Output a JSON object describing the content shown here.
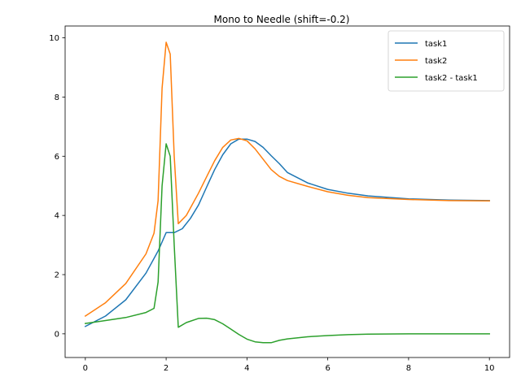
{
  "chart_data": {
    "type": "line",
    "title": "Mono to Needle (shift=-0.2)",
    "xlabel": "",
    "ylabel": "",
    "xlim": [
      -0.5,
      10.5
    ],
    "ylim": [
      -0.8,
      10.4
    ],
    "xticks": [
      0,
      2,
      4,
      6,
      8,
      10
    ],
    "yticks": [
      0,
      2,
      4,
      6,
      8,
      10
    ],
    "grid": false,
    "legend_position": "top-right",
    "series": [
      {
        "name": "task1",
        "color": "#1f77b4",
        "x": [
          0,
          0.5,
          1.0,
          1.5,
          1.8,
          2.0,
          2.1,
          2.2,
          2.4,
          2.6,
          2.8,
          3.0,
          3.2,
          3.4,
          3.6,
          3.8,
          4.0,
          4.2,
          4.4,
          4.6,
          4.8,
          5.0,
          5.5,
          6.0,
          6.5,
          7.0,
          8.0,
          9.0,
          10.0
        ],
        "y": [
          0.25,
          0.6,
          1.15,
          2.05,
          2.8,
          3.42,
          3.42,
          3.42,
          3.55,
          3.9,
          4.35,
          4.95,
          5.55,
          6.05,
          6.42,
          6.58,
          6.58,
          6.5,
          6.3,
          6.02,
          5.75,
          5.45,
          5.1,
          4.88,
          4.75,
          4.66,
          4.56,
          4.52,
          4.5
        ]
      },
      {
        "name": "task2",
        "color": "#ff7f0e",
        "x": [
          0,
          0.5,
          1.0,
          1.5,
          1.7,
          1.8,
          1.9,
          2.0,
          2.1,
          2.2,
          2.3,
          2.5,
          2.8,
          3.0,
          3.2,
          3.4,
          3.6,
          3.8,
          4.0,
          4.2,
          4.4,
          4.6,
          4.8,
          5.0,
          5.5,
          6.0,
          6.5,
          7.0,
          8.0,
          9.0,
          10.0
        ],
        "y": [
          0.6,
          1.05,
          1.7,
          2.7,
          3.4,
          4.5,
          8.3,
          9.85,
          9.45,
          6.0,
          3.72,
          4.0,
          4.75,
          5.3,
          5.85,
          6.3,
          6.55,
          6.6,
          6.52,
          6.25,
          5.9,
          5.55,
          5.32,
          5.18,
          4.98,
          4.8,
          4.68,
          4.6,
          4.54,
          4.5,
          4.49
        ]
      },
      {
        "name": "task2 - task1",
        "color": "#2ca02c",
        "x": [
          0,
          0.5,
          1.0,
          1.5,
          1.7,
          1.8,
          1.9,
          2.0,
          2.1,
          2.2,
          2.3,
          2.5,
          2.8,
          3.0,
          3.2,
          3.4,
          3.6,
          3.8,
          4.0,
          4.2,
          4.4,
          4.6,
          4.8,
          5.0,
          5.5,
          6.0,
          6.5,
          7.0,
          8.0,
          9.0,
          10.0
        ],
        "y": [
          0.35,
          0.45,
          0.55,
          0.72,
          0.86,
          1.75,
          5.0,
          6.42,
          6.0,
          3.0,
          0.22,
          0.38,
          0.52,
          0.53,
          0.48,
          0.34,
          0.16,
          -0.02,
          -0.18,
          -0.27,
          -0.3,
          -0.3,
          -0.22,
          -0.17,
          -0.1,
          -0.06,
          -0.03,
          -0.01,
          0.0,
          0.0,
          0.0
        ]
      }
    ]
  }
}
